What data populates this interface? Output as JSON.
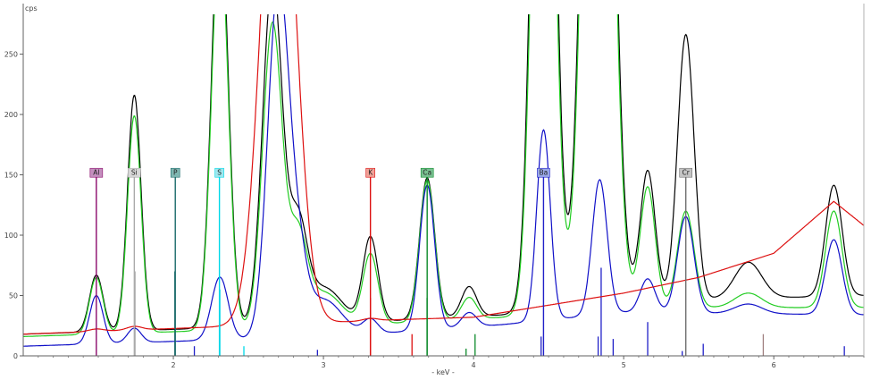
{
  "chart_data": {
    "type": "line",
    "ylabel": "cps",
    "xlabel": "- keV -",
    "xlim": [
      1.0,
      6.6
    ],
    "ylim": [
      0,
      283
    ],
    "x_ticks": [
      2,
      3,
      4,
      5,
      6
    ],
    "y_ticks": [
      0,
      50,
      100,
      150,
      200,
      250
    ],
    "elements": [
      {
        "label": "Al",
        "energy": 1.487,
        "line_height": 148,
        "color": "#8b0a6b",
        "tag_fill": "#c48fbe"
      },
      {
        "label": "Si",
        "energy": 1.74,
        "line_height": 148,
        "color": "#aaaaaa",
        "tag_fill": "#d8d8d8"
      },
      {
        "label": "P",
        "energy": 2.013,
        "line_height": 148,
        "color": "#1a6a6a",
        "tag_fill": "#7fb7b2"
      },
      {
        "label": "S",
        "energy": 2.307,
        "line_height": 148,
        "color": "#00d8e8",
        "tag_fill": "#9ee8ef"
      },
      {
        "label": "K",
        "energy": 3.313,
        "line_height": 148,
        "color": "#dd1010",
        "tag_fill": "#f0a096"
      },
      {
        "label": "Ca",
        "energy": 3.691,
        "line_height": 148,
        "color": "#0c8a2a",
        "tag_fill": "#78c090"
      },
      {
        "label": "Ba",
        "energy": 4.466,
        "line_height": 148,
        "color": "#2020c8",
        "tag_fill": "#9aa8e8"
      },
      {
        "label": "Cr",
        "energy": 5.414,
        "line_height": 148,
        "color": "#707070",
        "tag_fill": "#c4c4c4"
      }
    ],
    "marker_lines": [
      {
        "x": 1.745,
        "y": 70,
        "color": "#b0b0b0"
      },
      {
        "x": 2.01,
        "y": 70,
        "color": "#1a6a6a"
      },
      {
        "x": 2.14,
        "y": 8,
        "color": "#2020c8"
      },
      {
        "x": 2.31,
        "y": 55,
        "color": "#00d8e8"
      },
      {
        "x": 2.47,
        "y": 8,
        "color": "#00d8e8"
      },
      {
        "x": 2.96,
        "y": 5,
        "color": "#2020c8"
      },
      {
        "x": 3.313,
        "y": 48,
        "color": "#dd1010"
      },
      {
        "x": 3.59,
        "y": 18,
        "color": "#dd1010"
      },
      {
        "x": 3.69,
        "y": 48,
        "color": "#0c8a2a"
      },
      {
        "x": 3.95,
        "y": 6,
        "color": "#0c8a2a"
      },
      {
        "x": 4.01,
        "y": 18,
        "color": "#0c8a2a"
      },
      {
        "x": 4.45,
        "y": 16,
        "color": "#2020c8"
      },
      {
        "x": 4.83,
        "y": 16,
        "color": "#2020c8"
      },
      {
        "x": 4.85,
        "y": 73,
        "color": "#2020c8"
      },
      {
        "x": 4.93,
        "y": 14,
        "color": "#2020c8"
      },
      {
        "x": 5.16,
        "y": 28,
        "color": "#2020c8"
      },
      {
        "x": 5.39,
        "y": 4,
        "color": "#2020c8"
      },
      {
        "x": 5.53,
        "y": 10,
        "color": "#2020c8"
      },
      {
        "x": 5.93,
        "y": 18,
        "color": "#a08080"
      },
      {
        "x": 6.47,
        "y": 8,
        "color": "#2020c8"
      }
    ],
    "series": [
      {
        "color": "#000000",
        "baseline": [
          [
            1.0,
            18
          ],
          [
            2.5,
            24
          ],
          [
            3.3,
            28
          ],
          [
            4.2,
            34
          ],
          [
            5.0,
            45
          ],
          [
            6.6,
            50
          ]
        ],
        "peaks": [
          [
            1.487,
            47,
            0.045
          ],
          [
            1.74,
            195,
            0.045
          ],
          [
            2.31,
            350,
            0.055
          ],
          [
            2.66,
            286,
            0.065
          ],
          [
            2.83,
            78,
            0.06
          ],
          [
            3.0,
            30,
            0.12
          ],
          [
            3.313,
            70,
            0.05
          ],
          [
            3.691,
            117,
            0.05
          ],
          [
            3.97,
            25,
            0.05
          ],
          [
            4.466,
            800,
            0.065
          ],
          [
            4.83,
            1000,
            0.08
          ],
          [
            5.16,
            108,
            0.05
          ],
          [
            5.414,
            220,
            0.055
          ],
          [
            5.83,
            30,
            0.09
          ],
          [
            6.4,
            92,
            0.055
          ]
        ]
      },
      {
        "color": "#22cc22",
        "baseline": [
          [
            1.0,
            16
          ],
          [
            2.5,
            22
          ],
          [
            3.3,
            26
          ],
          [
            4.2,
            32
          ],
          [
            5.0,
            40
          ],
          [
            6.6,
            40
          ]
        ],
        "peaks": [
          [
            1.487,
            47,
            0.045
          ],
          [
            1.74,
            180,
            0.045
          ],
          [
            2.31,
            330,
            0.055
          ],
          [
            2.66,
            252,
            0.065
          ],
          [
            2.83,
            70,
            0.06
          ],
          [
            3.0,
            28,
            0.12
          ],
          [
            3.313,
            58,
            0.05
          ],
          [
            3.691,
            117,
            0.05
          ],
          [
            3.97,
            18,
            0.05
          ],
          [
            4.466,
            700,
            0.065
          ],
          [
            4.83,
            900,
            0.08
          ],
          [
            5.16,
            100,
            0.05
          ],
          [
            5.414,
            80,
            0.055
          ],
          [
            5.83,
            12,
            0.09
          ],
          [
            6.4,
            80,
            0.055
          ]
        ]
      },
      {
        "color": "#1010c8",
        "baseline": [
          [
            1.0,
            8
          ],
          [
            2.5,
            14
          ],
          [
            3.3,
            18
          ],
          [
            4.2,
            26
          ],
          [
            5.0,
            36
          ],
          [
            6.6,
            34
          ]
        ],
        "peaks": [
          [
            1.487,
            40,
            0.045
          ],
          [
            1.74,
            12,
            0.045
          ],
          [
            2.31,
            52,
            0.055
          ],
          [
            2.7,
            290,
            0.07
          ],
          [
            2.83,
            55,
            0.06
          ],
          [
            3.0,
            30,
            0.12
          ],
          [
            3.313,
            12,
            0.05
          ],
          [
            3.691,
            120,
            0.05
          ],
          [
            3.97,
            12,
            0.05
          ],
          [
            4.466,
            158,
            0.045
          ],
          [
            4.84,
            112,
            0.05
          ],
          [
            5.16,
            28,
            0.05
          ],
          [
            5.414,
            80,
            0.055
          ],
          [
            5.83,
            8,
            0.09
          ],
          [
            6.4,
            62,
            0.055
          ]
        ]
      },
      {
        "color": "#dd1010",
        "baseline": [
          [
            1.0,
            18
          ],
          [
            2.5,
            25
          ],
          [
            3.5,
            30
          ],
          [
            4.0,
            32
          ],
          [
            5.0,
            52
          ],
          [
            5.5,
            65
          ],
          [
            6.0,
            85
          ],
          [
            6.4,
            128
          ],
          [
            6.6,
            108
          ]
        ],
        "peaks": [
          [
            1.487,
            2,
            0.05
          ],
          [
            1.74,
            3,
            0.05
          ],
          [
            2.7,
            460,
            0.11
          ],
          [
            3.313,
            2,
            0.05
          ]
        ]
      }
    ]
  }
}
